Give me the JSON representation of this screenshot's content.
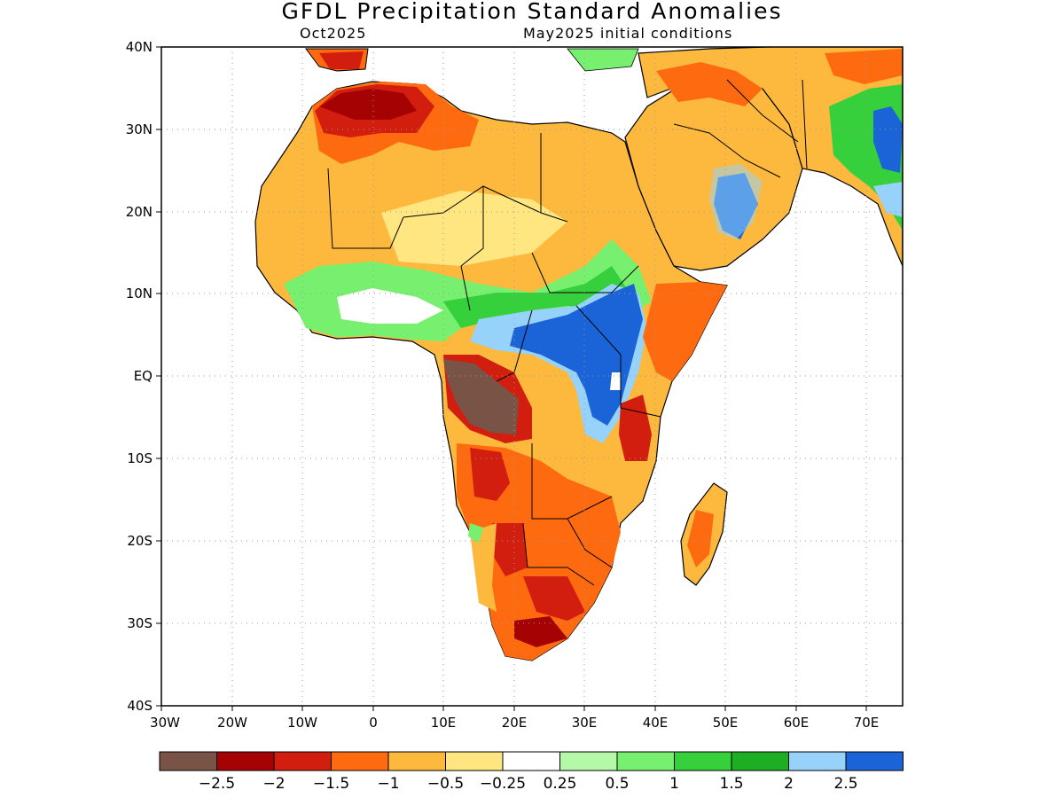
{
  "title": "GFDL Precipitation Standard Anomalies",
  "subtitle_left": "Oct2025",
  "subtitle_right": "May2025 initial conditions",
  "map": {
    "lon_range": [
      -30,
      75
    ],
    "lat_range": [
      -40,
      40
    ],
    "x_ticks": [
      "30W",
      "20W",
      "10W",
      "0",
      "10E",
      "20E",
      "30E",
      "40E",
      "50E",
      "60E",
      "70E"
    ],
    "y_ticks": [
      "40N",
      "30N",
      "20N",
      "10N",
      "EQ",
      "10S",
      "20S",
      "30S",
      "40S"
    ],
    "grid": "dotted",
    "regions_note_colors": {
      "north_africa": "#fdb93d",
      "morocco_algeria": "#d21e0f",
      "east_africa": "#1a64d8",
      "angola_drc": "#7a5347",
      "southern_africa": "#fe6a10"
    }
  },
  "colorbar": {
    "colors": [
      "#7a5347",
      "#a50203",
      "#d21e0f",
      "#fe6a10",
      "#fdb93d",
      "#ffe680",
      "#ffffff",
      "#b5f8a8",
      "#78f06f",
      "#36d03c",
      "#1eae24",
      "#96d2fa",
      "#1a64d8"
    ],
    "labels": [
      "-2.5",
      "-2",
      "-1.5",
      "-1",
      "-0.5",
      "-0.25",
      "0.25",
      "0.5",
      "1",
      "1.5",
      "2",
      "2.5"
    ]
  }
}
